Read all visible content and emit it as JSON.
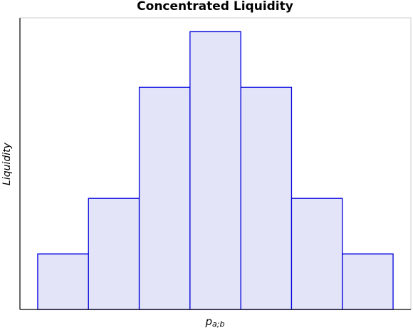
{
  "chart_data": {
    "type": "histogram",
    "title": "Concentrated Liquidity",
    "xlabel": "p",
    "xlabel_subscript": "a;b",
    "ylabel": "Liquidity",
    "bins": [
      0,
      1,
      2,
      3,
      4,
      5,
      6,
      7
    ],
    "values": [
      1,
      2,
      4,
      5,
      4,
      2,
      1
    ],
    "color": "#e4e4f8",
    "edgecolor": "#0000dd",
    "xlim": [
      -0.35,
      7.35
    ],
    "ylim": [
      0,
      5.25
    ]
  }
}
